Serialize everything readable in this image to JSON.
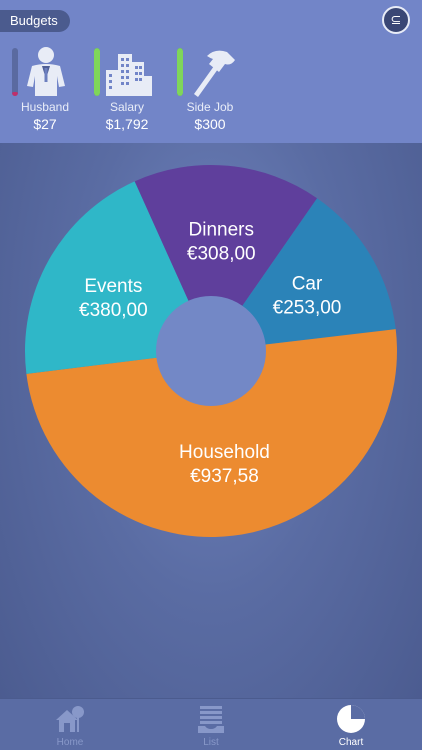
{
  "header": {
    "budgets_label": "Budgets",
    "settings_glyph": "⊆",
    "budgets": [
      {
        "name": "Husband",
        "amount": "$27",
        "icon": "person-icon",
        "level": 0.08,
        "bar_color": "#c0306b"
      },
      {
        "name": "Salary",
        "amount": "$1,792",
        "icon": "buildings-icon",
        "level": 1.0,
        "bar_color": "#7fd65a"
      },
      {
        "name": "Side Job",
        "amount": "$300",
        "icon": "hammer-icon",
        "level": 1.0,
        "bar_color": "#7fd65a"
      }
    ]
  },
  "chart_data": {
    "type": "pie",
    "style": "donut",
    "slices": [
      {
        "label": "Dinners",
        "value_label": "€308,00",
        "value": 308.0,
        "color": "#5f3f9c"
      },
      {
        "label": "Car",
        "value_label": "€253,00",
        "value": 253.0,
        "color": "#2b83b8"
      },
      {
        "label": "Household",
        "value_label": "€937,58",
        "value": 937.58,
        "color": "#ec8b30"
      },
      {
        "label": "Events",
        "value_label": "€380,00",
        "value": 380.0,
        "color": "#2fb7c8"
      }
    ],
    "title": "",
    "legend": "none"
  },
  "tabs": [
    {
      "label": "Home",
      "icon": "home-icon",
      "active": false
    },
    {
      "label": "List",
      "icon": "list-icon",
      "active": false
    },
    {
      "label": "Chart",
      "icon": "pie-chart-icon",
      "active": true
    }
  ],
  "colors": {
    "header_bg": "#7285c8",
    "page_bg": "#5a6ca3",
    "tabbar_bg": "#5a6ca4",
    "donut_hole": "#7388c6"
  }
}
